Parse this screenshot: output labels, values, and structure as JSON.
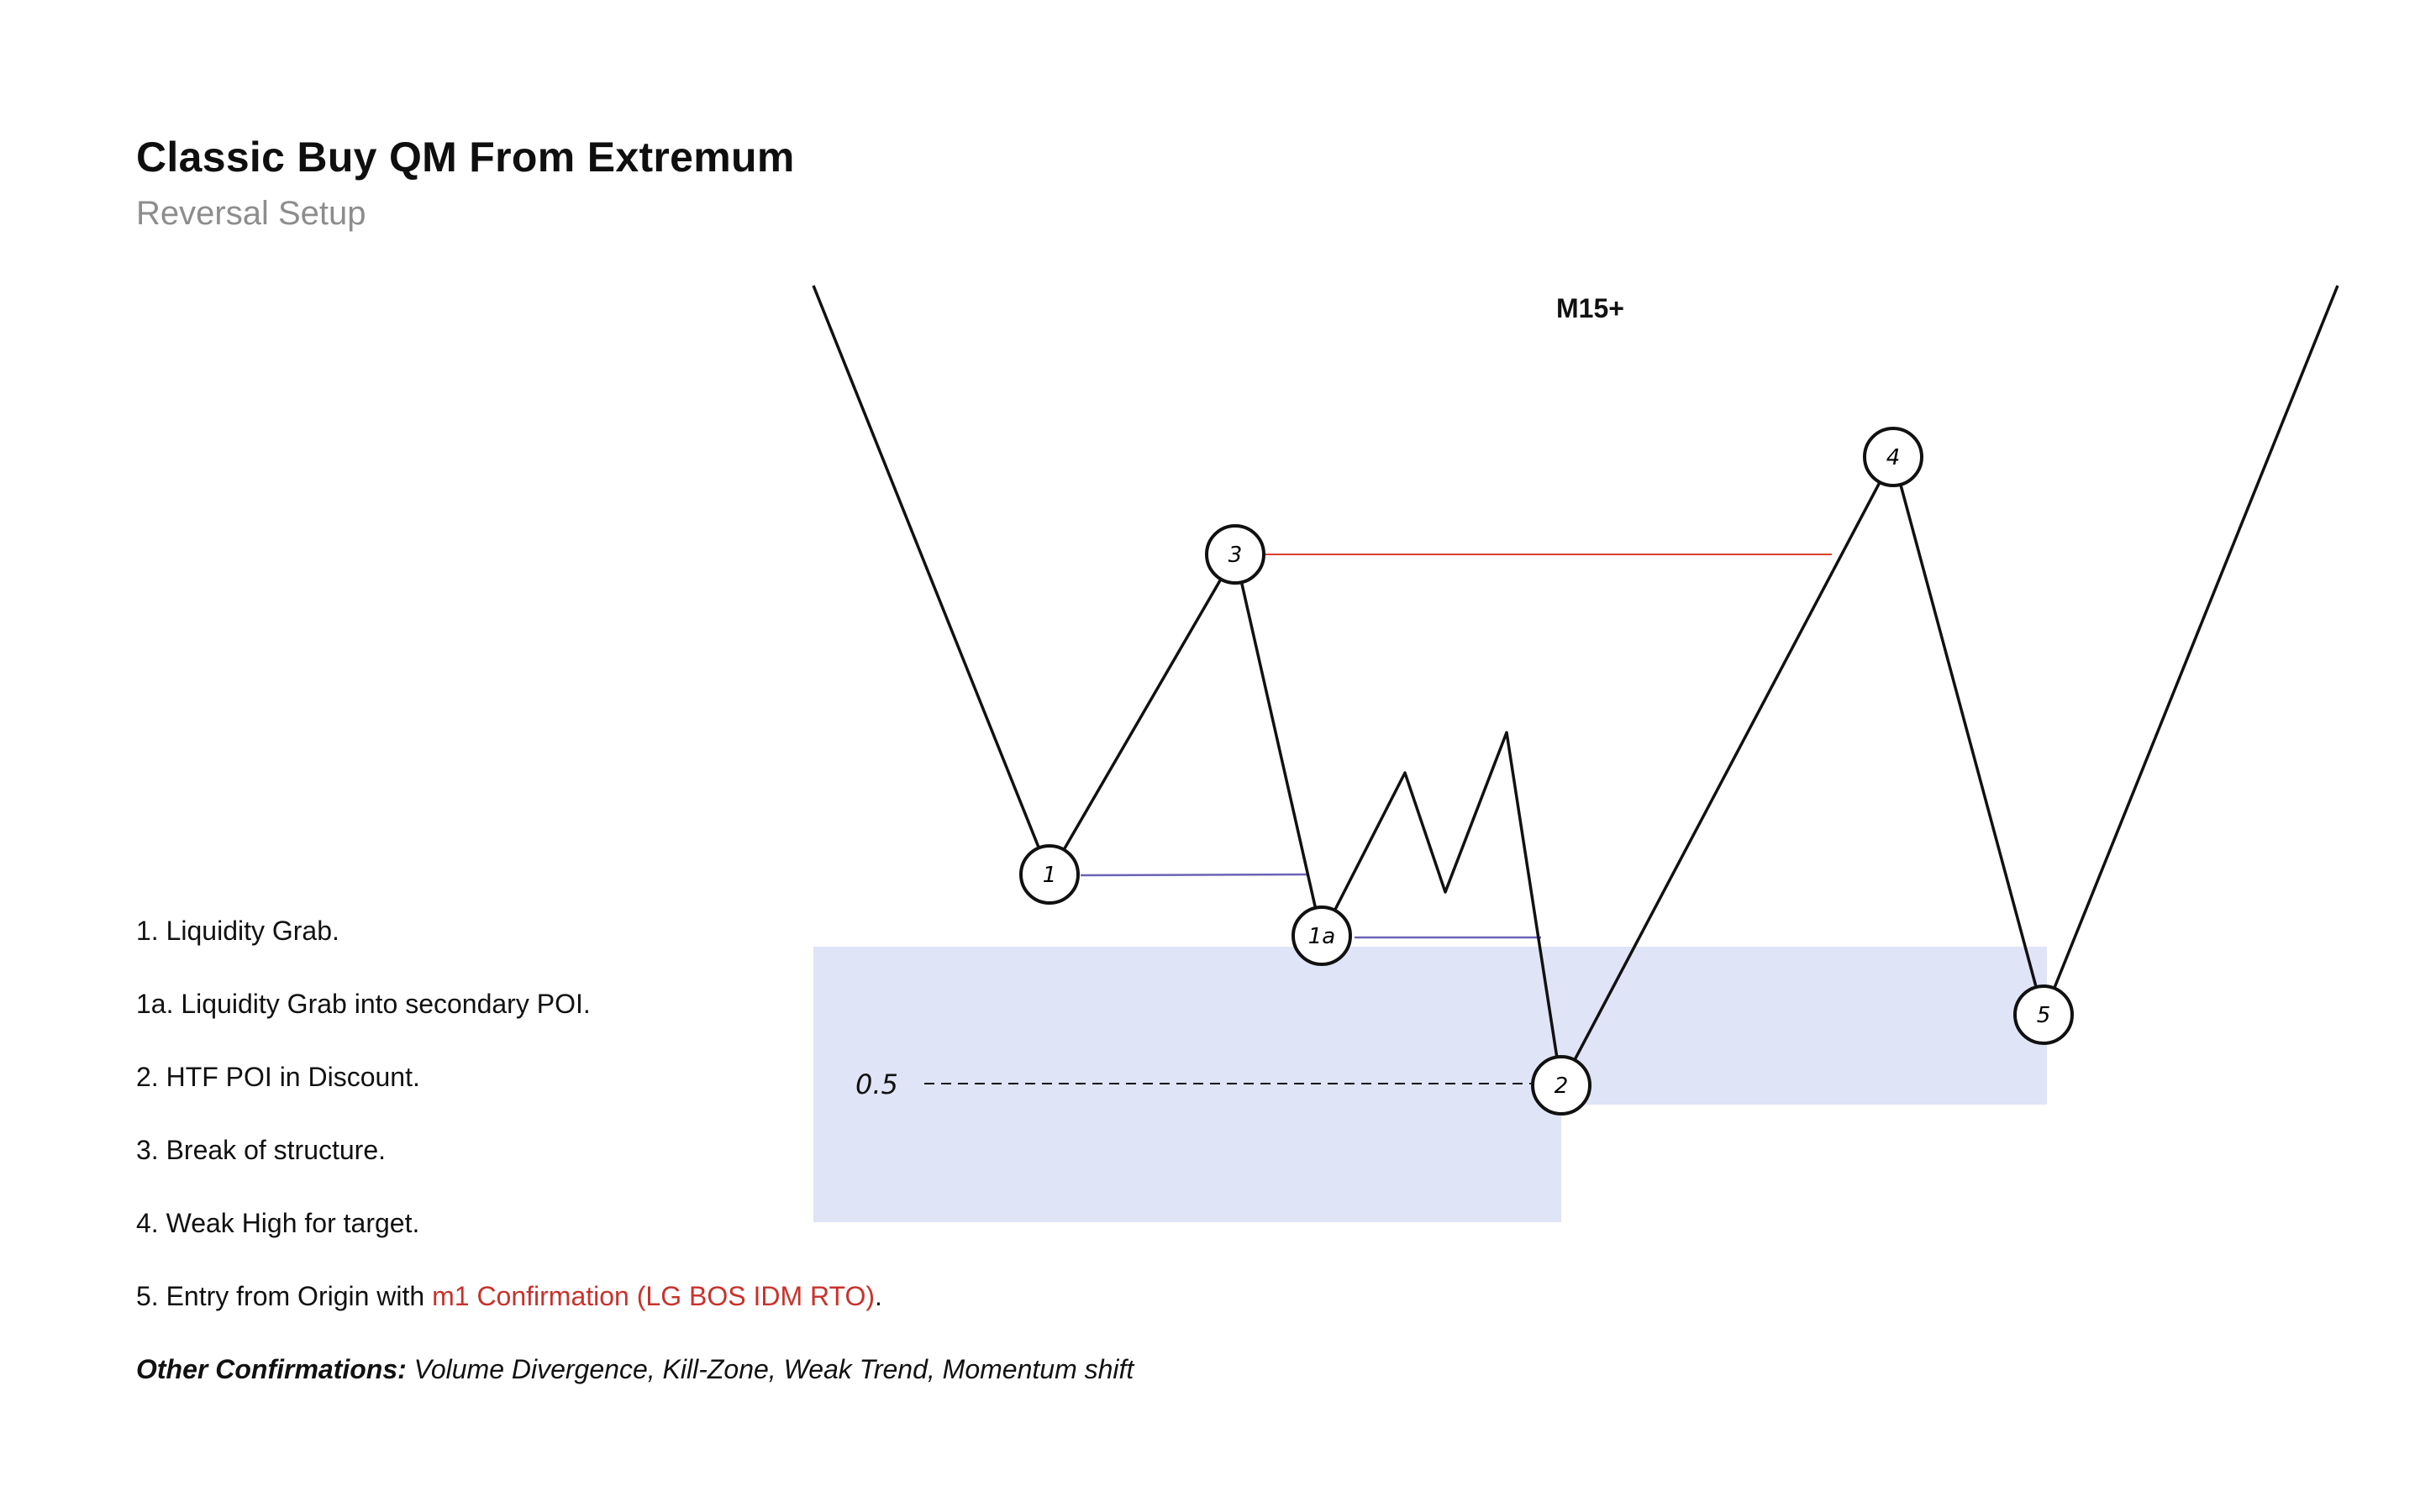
{
  "header": {
    "title": "Classic Buy QM From Extremum",
    "subtitle": "Reversal Setup"
  },
  "diagram": {
    "timeframe_label": "M15+",
    "fib_label": "0.5",
    "nodes": [
      "1",
      "3",
      "1a",
      "2",
      "4",
      "5"
    ],
    "colors": {
      "line": "#111111",
      "liquidity_line": "#6b63b5",
      "bos_line": "#d9412f",
      "poi_zone": "#dfe4f6"
    }
  },
  "notes": {
    "items": [
      "1. Liquidity Grab.",
      "1a. Liquidity Grab into secondary POI.",
      "2. HTF POI in Discount.",
      "3. Break of structure.",
      "4. Weak High for target."
    ],
    "entry": {
      "prefix": "5. Entry from Origin with ",
      "highlight": "m1 Confirmation (LG BOS IDM RTO)",
      "suffix": "."
    },
    "other": {
      "label": "Other Confirmations:",
      "text": " Volume Divergence, Kill-Zone, Weak Trend, Momentum shift"
    }
  }
}
